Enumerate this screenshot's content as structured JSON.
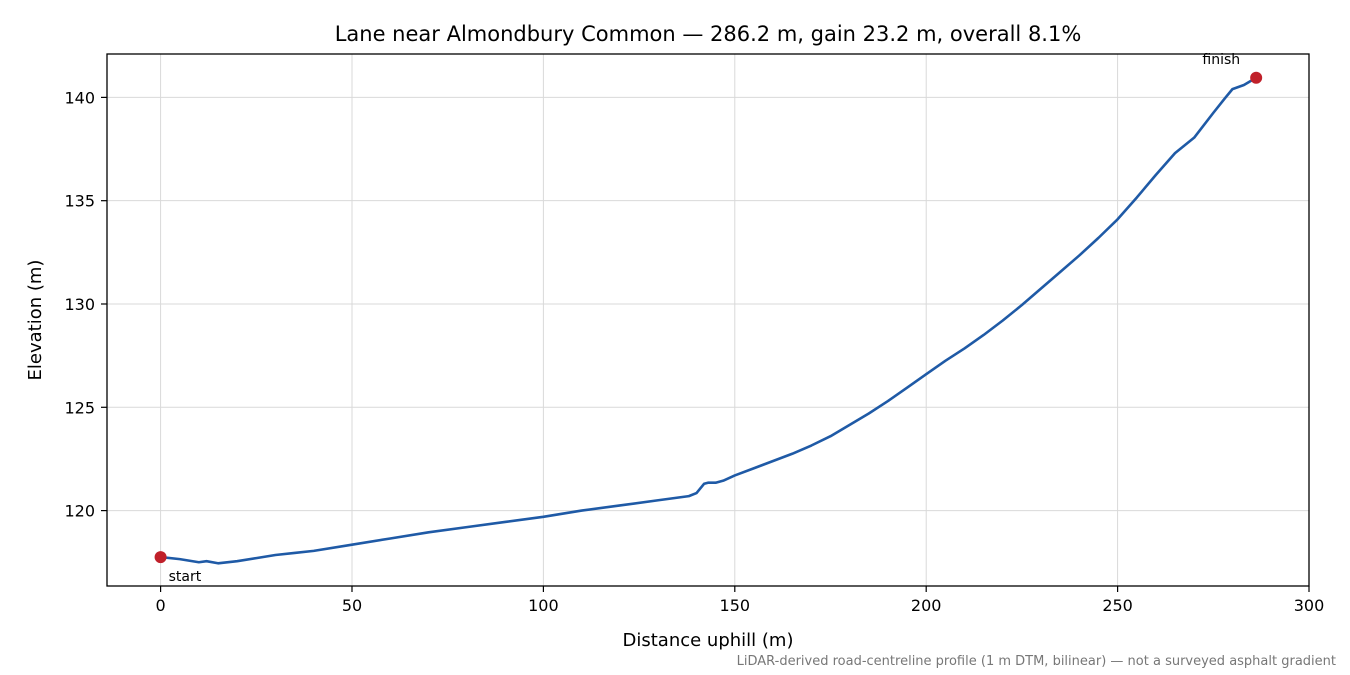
{
  "chart_data": {
    "type": "line",
    "title": "Lane near Almondbury Common — 286.2 m, gain 23.2 m, overall 8.1%",
    "xlabel": "Distance uphill (m)",
    "ylabel": "Elevation (m)",
    "xlim": [
      -14,
      300
    ],
    "ylim": [
      116.35,
      142.1
    ],
    "xticks": [
      0,
      50,
      100,
      150,
      200,
      250,
      300
    ],
    "yticks": [
      120,
      125,
      130,
      135,
      140
    ],
    "grid": true,
    "line_color": "#1f5aa6",
    "marker_color": "#c0202a",
    "series": [
      {
        "x": [
          0,
          5,
          10,
          12,
          15,
          20,
          25,
          30,
          35,
          40,
          50,
          60,
          70,
          80,
          90,
          100,
          110,
          120,
          130,
          138,
          140,
          142,
          143,
          145,
          147,
          150,
          155,
          160,
          165,
          170,
          175,
          180,
          185,
          190,
          195,
          200,
          205,
          210,
          215,
          220,
          225,
          230,
          235,
          240,
          245,
          250,
          255,
          260,
          265,
          270,
          275,
          278,
          280,
          283,
          286.2
        ],
        "y": [
          117.75,
          117.65,
          117.5,
          117.55,
          117.45,
          117.55,
          117.7,
          117.85,
          117.95,
          118.05,
          118.35,
          118.65,
          118.95,
          119.2,
          119.45,
          119.7,
          120.0,
          120.25,
          120.5,
          120.7,
          120.85,
          121.3,
          121.35,
          121.35,
          121.45,
          121.7,
          122.05,
          122.4,
          122.75,
          123.15,
          123.6,
          124.15,
          124.7,
          125.3,
          125.95,
          126.6,
          127.25,
          127.85,
          128.5,
          129.2,
          129.95,
          130.75,
          131.55,
          132.35,
          133.2,
          134.1,
          135.15,
          136.25,
          137.3,
          138.05,
          139.25,
          139.95,
          140.4,
          140.6,
          140.95
        ]
      }
    ],
    "annotations": {
      "start": {
        "label": "start",
        "x": 0,
        "y": 117.75
      },
      "finish": {
        "label": "finish",
        "x": 286.2,
        "y": 140.95
      }
    },
    "footnote": "LiDAR-derived road-centreline profile (1 m DTM, bilinear) — not a surveyed asphalt gradient"
  }
}
